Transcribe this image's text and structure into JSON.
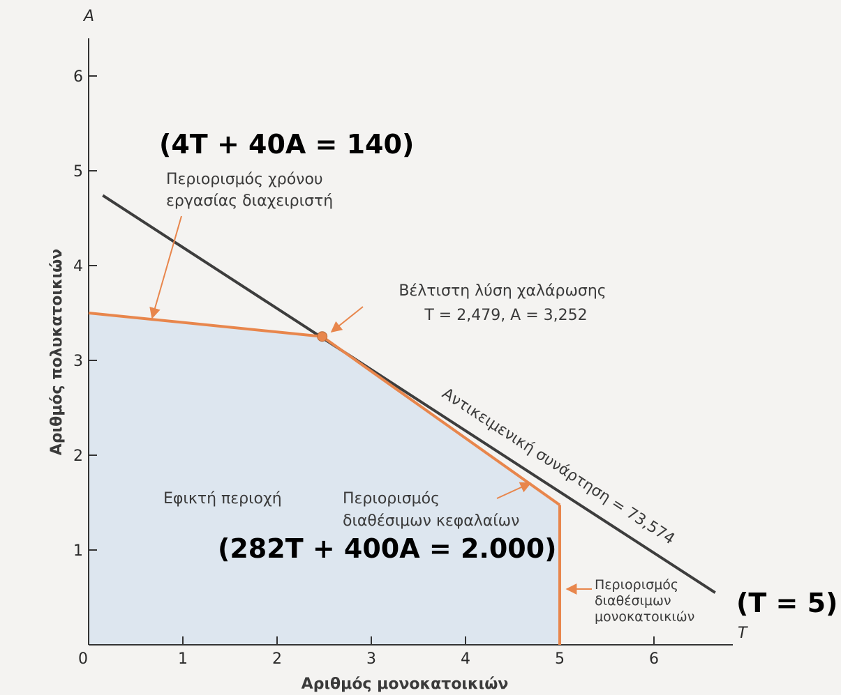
{
  "chart_data": {
    "type": "line",
    "xlabel": "Αριθμός μονοκατοικιών",
    "ylabel": "Αριθμός πολυκατοικιών",
    "x_var": "T",
    "y_var": "A",
    "xlim": [
      0,
      6.7
    ],
    "ylim": [
      0,
      6.6
    ],
    "x_ticks": [
      0,
      1,
      2,
      3,
      4,
      5,
      6
    ],
    "y_ticks": [
      1,
      2,
      3,
      4,
      5,
      6
    ],
    "grid": false,
    "feasible_region": {
      "label": "Εφικτή περιοχή",
      "polygon": [
        [
          0,
          0
        ],
        [
          0,
          3.5
        ],
        [
          2.479,
          3.252
        ],
        [
          5,
          1.475
        ],
        [
          5,
          0
        ]
      ],
      "color": "#dde6ef"
    },
    "constraint_color": "#e8864c",
    "objective_color": "#3d3d3d",
    "objective_line": {
      "label": "Αντικειμενική συνάρτηση = 73,574",
      "points": [
        [
          0.15,
          4.74
        ],
        [
          6.65,
          0.55
        ]
      ]
    },
    "constraints": [
      {
        "name": "labor",
        "label_lines": [
          "Περιορισμός χρόνου",
          "εργασίας διαχειριστή"
        ],
        "equation": "(4T + 40A = 140)",
        "points": [
          [
            0,
            3.5
          ],
          [
            2.479,
            3.252
          ]
        ]
      },
      {
        "name": "capital",
        "label_lines": [
          "Περιορισμός",
          "διαθέσιμων κεφαλαίων"
        ],
        "equation": "(282T + 400A = 2.000)",
        "points": [
          [
            2.479,
            3.252
          ],
          [
            5,
            1.475
          ]
        ]
      },
      {
        "name": "units",
        "label_lines": [
          "Περιορισμός",
          "διαθέσιμων",
          "μονοκατοικιών"
        ],
        "equation": "(T = 5)",
        "points": [
          [
            5,
            1.475
          ],
          [
            5,
            0
          ]
        ]
      }
    ],
    "optimum": {
      "label_lines": [
        "Βέλτιστη λύση χαλάρωσης",
        "T  = 2,479,  A  = 3,252"
      ],
      "x": 2.479,
      "y": 3.252
    }
  }
}
